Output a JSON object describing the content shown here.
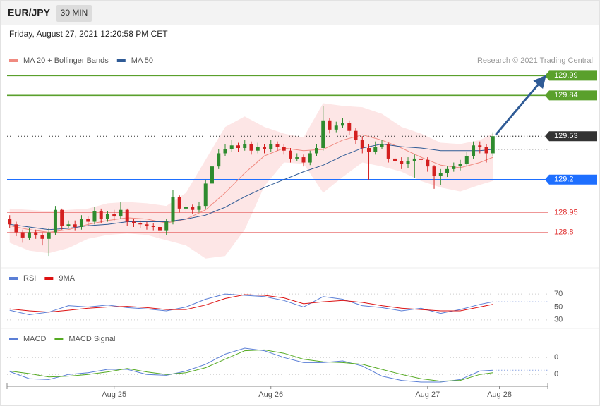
{
  "header": {
    "symbol": "EUR/JPY",
    "interval": "30 MIN",
    "timestamp": "Friday, August 27, 2021 12:20:58 PM CET"
  },
  "chart_data": [
    {
      "type": "candlestick",
      "credit": "Research © 2021 Trading Central",
      "xlim": [
        -0.4,
        82.4
      ],
      "ylim": [
        128.54,
        130.19
      ],
      "up_color": "#2e8b2e",
      "down_color": "#d42020",
      "candles": {
        "x": [
          0,
          1,
          2,
          3,
          4,
          5,
          6,
          7,
          8,
          9,
          10,
          11,
          12,
          13,
          14,
          15,
          16,
          17,
          18,
          19,
          20,
          21,
          22,
          23,
          24,
          25,
          26,
          27,
          28,
          29,
          30,
          31,
          32,
          33,
          34,
          35,
          36,
          37,
          38,
          39,
          40,
          41,
          42,
          43,
          44,
          45,
          46,
          47,
          48,
          49,
          50,
          51,
          52,
          53,
          54,
          55,
          56,
          57,
          58,
          59,
          60,
          61,
          62,
          63,
          64,
          65,
          66,
          67,
          68,
          69,
          70,
          71,
          72,
          73,
          74
        ],
        "open": [
          128.9,
          128.86,
          128.8,
          128.76,
          128.8,
          128.78,
          128.75,
          128.8,
          128.97,
          128.85,
          128.86,
          128.84,
          128.9,
          128.88,
          128.96,
          128.9,
          128.94,
          128.92,
          128.97,
          128.88,
          128.87,
          128.86,
          128.85,
          128.84,
          128.81,
          128.88,
          129.07,
          128.98,
          128.99,
          128.97,
          129.0,
          129.17,
          129.3,
          129.4,
          129.43,
          129.46,
          129.44,
          129.47,
          129.42,
          129.45,
          129.43,
          129.47,
          129.45,
          129.42,
          129.36,
          129.37,
          129.33,
          129.4,
          129.44,
          129.65,
          129.58,
          129.61,
          129.63,
          129.57,
          129.5,
          129.44,
          129.41,
          129.45,
          129.47,
          129.36,
          129.34,
          129.32,
          129.34,
          129.36,
          129.35,
          129.3,
          129.23,
          129.25,
          129.28,
          129.3,
          129.32,
          129.38,
          129.46,
          129.45,
          129.4
        ],
        "high": [
          128.93,
          128.88,
          128.82,
          128.83,
          128.82,
          128.8,
          128.83,
          129.0,
          128.98,
          128.89,
          128.89,
          128.93,
          128.92,
          128.99,
          128.98,
          128.96,
          128.97,
          129.03,
          128.98,
          128.9,
          128.89,
          128.88,
          128.87,
          128.86,
          128.9,
          129.12,
          129.08,
          129.02,
          129.01,
          129.03,
          129.2,
          129.35,
          129.43,
          129.47,
          129.5,
          129.48,
          129.5,
          129.49,
          129.48,
          129.47,
          129.5,
          129.49,
          129.47,
          129.44,
          129.4,
          129.39,
          129.42,
          129.47,
          129.76,
          129.67,
          129.64,
          129.67,
          129.65,
          129.59,
          129.53,
          129.47,
          129.49,
          129.5,
          129.48,
          129.39,
          129.37,
          129.37,
          129.39,
          129.38,
          129.37,
          129.31,
          129.28,
          129.3,
          129.33,
          129.35,
          129.41,
          129.49,
          129.49,
          129.47,
          129.56
        ],
        "low": [
          128.83,
          128.77,
          128.72,
          128.74,
          128.75,
          128.7,
          128.62,
          128.78,
          128.82,
          128.83,
          128.81,
          128.82,
          128.85,
          128.86,
          128.87,
          128.88,
          128.89,
          128.9,
          128.85,
          128.84,
          128.83,
          128.82,
          128.81,
          128.74,
          128.78,
          128.86,
          128.95,
          128.95,
          128.94,
          128.95,
          128.98,
          129.15,
          129.28,
          129.38,
          129.41,
          129.41,
          129.42,
          129.39,
          129.4,
          129.4,
          129.41,
          129.42,
          129.39,
          129.33,
          129.34,
          129.3,
          129.31,
          129.38,
          129.42,
          129.55,
          129.56,
          129.59,
          129.54,
          129.47,
          129.4,
          129.2,
          129.39,
          129.43,
          129.33,
          129.31,
          129.28,
          129.29,
          129.21,
          129.32,
          129.26,
          129.13,
          129.16,
          129.22,
          129.26,
          129.27,
          129.3,
          129.36,
          129.4,
          129.33,
          129.38
        ],
        "close": [
          128.86,
          128.8,
          128.76,
          128.8,
          128.78,
          128.75,
          128.8,
          128.97,
          128.85,
          128.86,
          128.84,
          128.9,
          128.88,
          128.96,
          128.9,
          128.94,
          128.92,
          128.97,
          128.88,
          128.87,
          128.86,
          128.85,
          128.84,
          128.81,
          128.88,
          129.07,
          128.98,
          128.99,
          128.97,
          129.0,
          129.17,
          129.3,
          129.4,
          129.43,
          129.46,
          129.44,
          129.47,
          129.42,
          129.45,
          129.43,
          129.47,
          129.45,
          129.42,
          129.36,
          129.37,
          129.33,
          129.4,
          129.44,
          129.65,
          129.58,
          129.61,
          129.63,
          129.57,
          129.5,
          129.44,
          129.41,
          129.45,
          129.47,
          129.36,
          129.34,
          129.32,
          129.34,
          129.36,
          129.35,
          129.3,
          129.23,
          129.25,
          129.28,
          129.3,
          129.32,
          129.38,
          129.46,
          129.45,
          129.4,
          129.53
        ]
      },
      "x": [
        0,
        3,
        6,
        9,
        12,
        15,
        18,
        21,
        24,
        27,
        30,
        33,
        36,
        39,
        42,
        45,
        48,
        51,
        54,
        57,
        60,
        63,
        66,
        69,
        72,
        74
      ],
      "series": [
        {
          "name": "MA 20 + Bollinger Bands",
          "color": "#f08a80",
          "band_color": "#fde2e2",
          "values": [
            128.85,
            128.82,
            128.8,
            128.82,
            128.86,
            128.89,
            128.91,
            128.9,
            128.87,
            128.9,
            128.97,
            129.1,
            129.25,
            129.38,
            129.44,
            129.42,
            129.43,
            129.5,
            129.54,
            129.5,
            129.44,
            129.37,
            129.31,
            129.29,
            129.33,
            129.37
          ],
          "upper": [
            128.98,
            128.97,
            128.96,
            128.97,
            128.98,
            129.02,
            129.03,
            129.02,
            129.0,
            129.1,
            129.35,
            129.6,
            129.68,
            129.6,
            129.55,
            129.52,
            129.78,
            129.76,
            129.75,
            129.7,
            129.6,
            129.55,
            129.48,
            129.47,
            129.5,
            129.55
          ],
          "lower": [
            128.72,
            128.66,
            128.64,
            128.68,
            128.75,
            128.78,
            128.79,
            128.78,
            128.74,
            128.7,
            128.6,
            128.62,
            128.82,
            129.15,
            129.33,
            129.32,
            129.1,
            129.22,
            129.33,
            129.3,
            129.26,
            129.19,
            129.14,
            129.11,
            129.16,
            129.19
          ]
        },
        {
          "name": "MA 50",
          "color": "#2f5b96",
          "values": [
            128.86,
            128.84,
            128.82,
            128.83,
            128.85,
            128.86,
            128.88,
            128.88,
            128.88,
            128.9,
            128.93,
            128.99,
            129.07,
            129.14,
            129.2,
            129.26,
            129.31,
            129.38,
            129.44,
            129.47,
            129.45,
            129.44,
            129.42,
            129.42,
            129.42,
            129.43
          ]
        }
      ],
      "levels": [
        {
          "value": 129.99,
          "color": "#5aa02c",
          "boxed": true
        },
        {
          "value": 129.84,
          "color": "#5aa02c",
          "boxed": true
        },
        {
          "value": 129.53,
          "color": "#333333",
          "boxed": true
        },
        {
          "value": 129.2,
          "color": "#1e6fff",
          "boxed": true
        },
        {
          "value": 128.95,
          "color": "#e03030",
          "boxed": false
        },
        {
          "value": 128.8,
          "color": "#e03030",
          "boxed": false
        }
      ]
    },
    {
      "type": "line",
      "xlim": [
        -0.4,
        82.4
      ],
      "ylim": [
        20,
        105
      ],
      "yticks": [
        70,
        50,
        30
      ],
      "x": [
        0,
        3,
        6,
        9,
        12,
        15,
        18,
        21,
        24,
        27,
        30,
        33,
        36,
        39,
        42,
        45,
        48,
        51,
        54,
        57,
        60,
        63,
        66,
        69,
        72,
        74
      ],
      "series": [
        {
          "name": "RSI",
          "color": "#5b7fd6",
          "values": [
            45,
            38,
            42,
            52,
            50,
            53,
            49,
            47,
            44,
            50,
            62,
            70,
            68,
            66,
            60,
            50,
            66,
            62,
            52,
            49,
            44,
            48,
            40,
            46,
            54,
            58
          ]
        },
        {
          "name": "9MA",
          "color": "#dd1111",
          "values": [
            47,
            44,
            42,
            45,
            48,
            50,
            51,
            49,
            46,
            46,
            53,
            63,
            69,
            68,
            64,
            55,
            58,
            60,
            57,
            52,
            48,
            46,
            44,
            44,
            50,
            54
          ]
        }
      ]
    },
    {
      "type": "line",
      "xlim": [
        -0.4,
        82.4
      ],
      "ylim": [
        -0.07,
        0.18
      ],
      "yticks": [
        {
          "value": 0.1,
          "label": "0"
        },
        0
      ],
      "xticks": [
        {
          "value": 16,
          "label": "Aug 25"
        },
        {
          "value": 40,
          "label": "Aug 26"
        },
        {
          "value": 64,
          "label": "Aug 27"
        },
        {
          "value": 75,
          "label": "Aug 28"
        }
      ],
      "x": [
        0,
        3,
        6,
        9,
        12,
        15,
        18,
        21,
        24,
        27,
        30,
        33,
        36,
        39,
        42,
        45,
        48,
        51,
        54,
        57,
        60,
        63,
        66,
        69,
        72,
        74
      ],
      "series": [
        {
          "name": "MACD",
          "color": "#5b7fd6",
          "values": [
            0.017,
            -0.025,
            -0.03,
            0.0,
            0.01,
            0.03,
            0.03,
            0.0,
            -0.005,
            0.02,
            0.06,
            0.12,
            0.155,
            0.14,
            0.1,
            0.07,
            0.07,
            0.08,
            0.05,
            -0.01,
            -0.035,
            -0.045,
            -0.045,
            -0.03,
            0.02,
            0.025
          ]
        },
        {
          "name": "MACD Signal",
          "color": "#55aa22",
          "values": [
            0.02,
            0.005,
            -0.015,
            -0.01,
            0.0,
            0.015,
            0.035,
            0.015,
            0.0,
            0.01,
            0.04,
            0.09,
            0.14,
            0.145,
            0.125,
            0.09,
            0.075,
            0.07,
            0.06,
            0.03,
            0.0,
            -0.025,
            -0.04,
            -0.035,
            0.0,
            0.01
          ]
        }
      ]
    }
  ]
}
